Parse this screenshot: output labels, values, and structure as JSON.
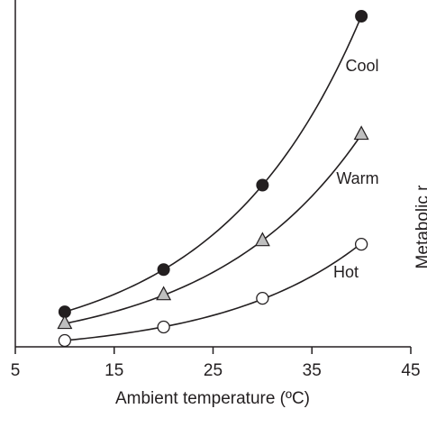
{
  "chart_data": {
    "type": "line",
    "xlabel": "Ambient temperature (ºC)",
    "xlim": [
      5,
      45
    ],
    "xticks": [
      5,
      15,
      25,
      35,
      45
    ],
    "ylim": [
      0,
      1
    ],
    "series": [
      {
        "name": "Cool",
        "marker": "filled-circle",
        "x": [
          10,
          20,
          30,
          40
        ],
        "y": [
          0.125,
          0.25,
          0.5,
          1.0
        ]
      },
      {
        "name": "Warm",
        "marker": "gray-triangle",
        "x": [
          10,
          20,
          30,
          40
        ],
        "y": [
          0.09,
          0.175,
          0.335,
          0.65
        ]
      },
      {
        "name": "Hot",
        "marker": "open-circle",
        "x": [
          10,
          20,
          30,
          40
        ],
        "y": [
          0.04,
          0.08,
          0.165,
          0.325
        ]
      }
    ],
    "right_axis_label_fragment": "Metabolic r"
  },
  "colors": {
    "ink": "#231f20",
    "triangle_fill": "#bfbfbf",
    "open_fill": "#ffffff"
  }
}
